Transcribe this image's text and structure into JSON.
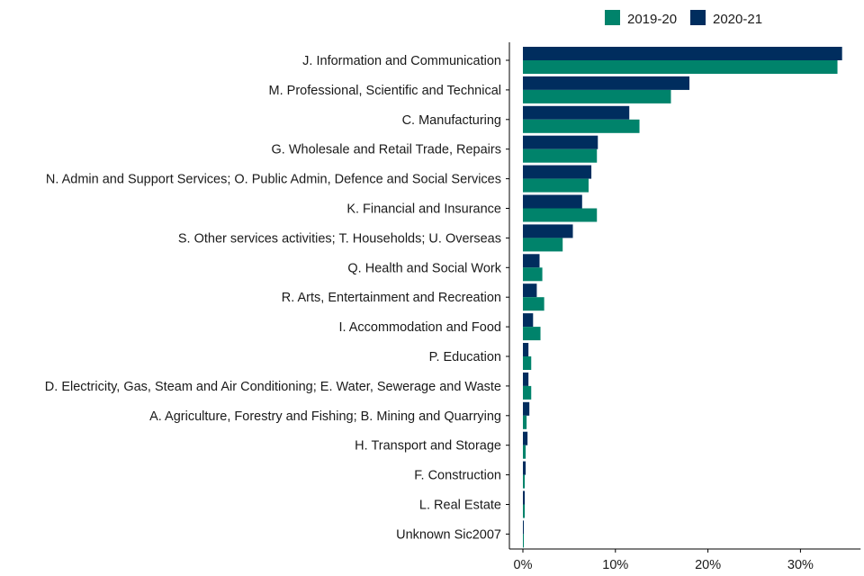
{
  "chart_data": {
    "type": "bar",
    "orientation": "horizontal",
    "categories": [
      "J. Information and Communication",
      "M. Professional, Scientific and Technical",
      "C. Manufacturing",
      "G. Wholesale and Retail Trade, Repairs",
      "N. Admin and Support Services; O. Public Admin, Defence and Social Services",
      "K. Financial and Insurance",
      "S. Other services activities; T. Households; U. Overseas",
      "Q. Health and Social Work",
      "R. Arts, Entertainment and Recreation",
      "I. Accommodation and Food",
      "P. Education",
      "D. Electricity, Gas, Steam and Air Conditioning; E. Water, Sewerage and Waste",
      "A. Agriculture, Forestry and Fishing; B. Mining and Quarrying",
      "H. Transport and Storage",
      "F. Construction",
      "L. Real Estate",
      "Unknown Sic2007"
    ],
    "series": [
      {
        "name": "2019-20",
        "color": "#00836B",
        "values": [
          34.0,
          16.0,
          12.6,
          8.0,
          7.1,
          8.0,
          4.3,
          2.1,
          2.3,
          1.9,
          0.9,
          0.9,
          0.4,
          0.3,
          0.2,
          0.2,
          0.1
        ]
      },
      {
        "name": "2020-21",
        "color": "#002D5E",
        "values": [
          34.5,
          18.0,
          11.5,
          8.1,
          7.4,
          6.4,
          5.4,
          1.8,
          1.5,
          1.1,
          0.6,
          0.6,
          0.7,
          0.5,
          0.3,
          0.2,
          0.1
        ]
      }
    ],
    "xlim": [
      0,
      36.5
    ],
    "xticks": [
      0,
      10,
      20,
      30
    ],
    "xtick_labels": [
      "0%",
      "10%",
      "20%",
      "30%"
    ],
    "legend_position": "top-right",
    "grid": false,
    "title": "",
    "xlabel": "",
    "ylabel": ""
  }
}
